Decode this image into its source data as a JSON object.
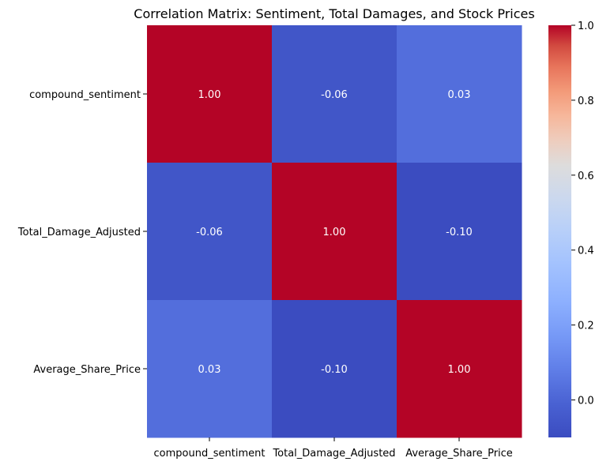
{
  "chart_data": {
    "type": "heatmap",
    "title": "Correlation Matrix: Sentiment, Total Damages, and Stock Prices",
    "row_labels": [
      "compound_sentiment",
      "Total_Damage_Adjusted",
      "Average_Share_Price"
    ],
    "column_labels": [
      "compound_sentiment",
      "Total_Damage_Adjusted",
      "Average_Share_Price"
    ],
    "values": [
      [
        1.0,
        -0.06,
        0.03
      ],
      [
        -0.06,
        1.0,
        -0.1
      ],
      [
        0.03,
        -0.1,
        1.0
      ]
    ],
    "cell_labels": [
      [
        "1.00",
        "-0.06",
        "0.03"
      ],
      [
        "-0.06",
        "1.00",
        "-0.10"
      ],
      [
        "0.03",
        "-0.10",
        "1.00"
      ]
    ],
    "colorbar": {
      "colormap": "coolwarm",
      "range": [
        -0.1,
        1.0
      ],
      "ticks": [
        0.0,
        0.2,
        0.4,
        0.6,
        0.8,
        1.0
      ],
      "tick_labels": [
        "0.0",
        "0.2",
        "0.4",
        "0.6",
        "0.8",
        "1.0"
      ]
    },
    "colors": {
      "high": "#b40426",
      "low": "#3b4cc0",
      "mid": "#dddcdc",
      "annotation_text": "#ffffff",
      "axis_text": "#000000"
    }
  }
}
